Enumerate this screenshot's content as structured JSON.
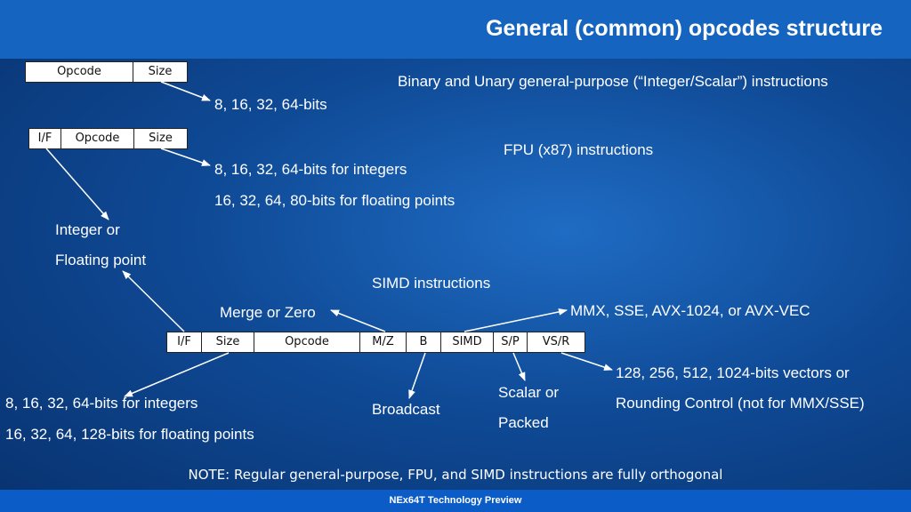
{
  "title": "General (common) opcodes structure",
  "footer": "NEx64T Technology Preview",
  "note": "NOTE: Regular general-purpose, FPU, and SIMD instructions are fully orthogonal",
  "section1": {
    "fields": [
      "Opcode",
      "Size"
    ],
    "size_label": "8, 16, 32, 64-bits",
    "heading": "Binary and Unary general-purpose (“Integer/Scalar”) instructions"
  },
  "section2": {
    "fields": [
      "I/F",
      "Opcode",
      "Size"
    ],
    "size_label_int": "8, 16, 32, 64-bits for integers",
    "size_label_fp": "16, 32, 64, 80-bits for floating points",
    "heading": "FPU (x87) instructions",
    "if_label_1": "Integer or",
    "if_label_2": "Floating point"
  },
  "section3": {
    "heading": "SIMD instructions",
    "fields": [
      "I/F",
      "Size",
      "Opcode",
      "M/Z",
      "B",
      "SIMD",
      "S/P",
      "VS/R"
    ],
    "merge_label": "Merge or Zero",
    "simd_label": "MMX, SSE, AVX-1024, or AVX-VEC",
    "size_label_int": "8, 16, 32, 64-bits for integers",
    "size_label_fp": "16, 32, 64, 128-bits for floating points",
    "broadcast_label": "Broadcast",
    "sp_label_1": "Scalar or",
    "sp_label_2": "Packed",
    "vsr_label_1": "128, 256, 512, 1024-bits vectors or",
    "vsr_label_2": "Rounding Control (not for MMX/SSE)"
  }
}
